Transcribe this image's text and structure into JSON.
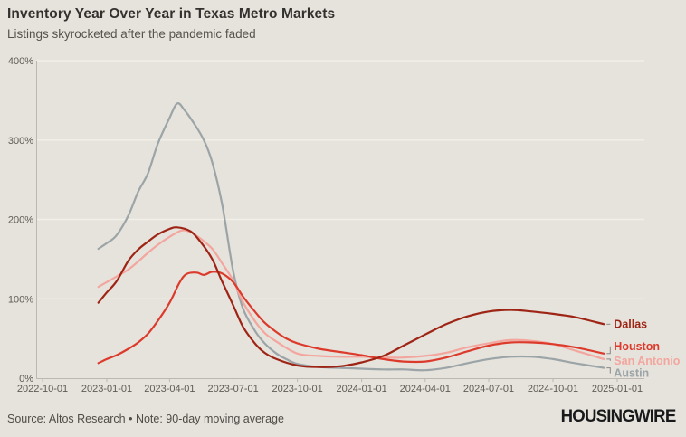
{
  "header": {
    "title": "Inventory Year Over Year in Texas Metro Markets",
    "subtitle": "Listings skyrocketed after the pandemic faded"
  },
  "footer": {
    "source_note": "Source: Altos Research • Note: 90-day moving average",
    "brand": "HOUSINGWIRE"
  },
  "colors": {
    "background": "#e6e2dc",
    "gridline": "#f1efe9",
    "axis": "#bcb8b1",
    "tick_text": "#5f5b55",
    "leader": "#8a8681",
    "dallas": "#9e2515",
    "houston": "#dc3b2c",
    "san_antonio": "#f3a69e",
    "austin": "#9ba4a6"
  },
  "chart_data": {
    "type": "line",
    "title": "Inventory Year Over Year in Texas Metro Markets",
    "subtitle": "Listings skyrocketed after the pandemic faded",
    "xlabel": "",
    "ylabel": "",
    "ylim": [
      0,
      400
    ],
    "grid": "horizontal",
    "legend_position": "end-of-line-labels",
    "x_range": [
      "2022-10-01",
      "2025-01-01"
    ],
    "x_ticks": [
      "2022-10-01",
      "2023-01-01",
      "2023-04-01",
      "2023-07-01",
      "2023-10-01",
      "2024-01-01",
      "2024-04-01",
      "2024-07-01",
      "2024-10-01",
      "2025-01-01"
    ],
    "y_ticks": [
      {
        "value": 0,
        "label": "0%"
      },
      {
        "value": 100,
        "label": "100%"
      },
      {
        "value": 200,
        "label": "200%"
      },
      {
        "value": 300,
        "label": "300%"
      },
      {
        "value": 400,
        "label": "400%"
      }
    ],
    "series": [
      {
        "name": "Austin",
        "color": "#9ba4a6",
        "label_dy": 6,
        "points": [
          [
            "2022-12-20",
            163
          ],
          [
            "2023-01-01",
            170
          ],
          [
            "2023-01-15",
            180
          ],
          [
            "2023-02-01",
            205
          ],
          [
            "2023-02-15",
            235
          ],
          [
            "2023-03-01",
            258
          ],
          [
            "2023-03-15",
            295
          ],
          [
            "2023-04-01",
            328
          ],
          [
            "2023-04-12",
            346
          ],
          [
            "2023-04-22",
            338
          ],
          [
            "2023-05-05",
            322
          ],
          [
            "2023-05-20",
            300
          ],
          [
            "2023-06-01",
            272
          ],
          [
            "2023-06-15",
            220
          ],
          [
            "2023-07-01",
            135
          ],
          [
            "2023-07-15",
            88
          ],
          [
            "2023-08-01",
            60
          ],
          [
            "2023-08-15",
            44
          ],
          [
            "2023-09-01",
            31
          ],
          [
            "2023-09-15",
            24
          ],
          [
            "2023-10-01",
            18
          ],
          [
            "2023-11-01",
            14
          ],
          [
            "2023-12-01",
            13
          ],
          [
            "2024-01-01",
            12
          ],
          [
            "2024-02-01",
            11
          ],
          [
            "2024-03-01",
            11
          ],
          [
            "2024-04-01",
            10
          ],
          [
            "2024-05-01",
            13
          ],
          [
            "2024-06-01",
            19
          ],
          [
            "2024-07-01",
            24
          ],
          [
            "2024-08-01",
            27
          ],
          [
            "2024-09-01",
            27
          ],
          [
            "2024-10-01",
            24
          ],
          [
            "2024-11-01",
            19
          ],
          [
            "2024-12-13",
            13
          ]
        ]
      },
      {
        "name": "San Antonio",
        "color": "#f3a69e",
        "label_dy": 2,
        "points": [
          [
            "2022-12-20",
            115
          ],
          [
            "2023-01-01",
            121
          ],
          [
            "2023-01-15",
            128
          ],
          [
            "2023-02-01",
            137
          ],
          [
            "2023-02-15",
            147
          ],
          [
            "2023-03-01",
            158
          ],
          [
            "2023-03-15",
            168
          ],
          [
            "2023-04-01",
            178
          ],
          [
            "2023-04-18",
            186
          ],
          [
            "2023-05-01",
            184
          ],
          [
            "2023-05-15",
            176
          ],
          [
            "2023-06-01",
            163
          ],
          [
            "2023-06-15",
            145
          ],
          [
            "2023-07-01",
            123
          ],
          [
            "2023-07-15",
            96
          ],
          [
            "2023-08-01",
            72
          ],
          [
            "2023-08-15",
            57
          ],
          [
            "2023-09-01",
            46
          ],
          [
            "2023-10-01",
            31
          ],
          [
            "2023-11-01",
            28
          ],
          [
            "2023-12-01",
            27
          ],
          [
            "2024-01-01",
            27
          ],
          [
            "2024-02-01",
            26
          ],
          [
            "2024-03-01",
            26
          ],
          [
            "2024-04-01",
            28
          ],
          [
            "2024-05-01",
            32
          ],
          [
            "2024-06-01",
            39
          ],
          [
            "2024-07-01",
            44
          ],
          [
            "2024-08-01",
            48
          ],
          [
            "2024-09-01",
            47
          ],
          [
            "2024-10-01",
            43
          ],
          [
            "2024-11-01",
            35
          ],
          [
            "2024-12-13",
            24
          ]
        ]
      },
      {
        "name": "Houston",
        "color": "#dc3b2c",
        "label_dy": -8,
        "points": [
          [
            "2022-12-20",
            19
          ],
          [
            "2023-01-01",
            24
          ],
          [
            "2023-01-15",
            29
          ],
          [
            "2023-02-01",
            37
          ],
          [
            "2023-02-15",
            45
          ],
          [
            "2023-03-01",
            56
          ],
          [
            "2023-03-15",
            72
          ],
          [
            "2023-04-01",
            95
          ],
          [
            "2023-04-15",
            120
          ],
          [
            "2023-04-25",
            131
          ],
          [
            "2023-05-10",
            133
          ],
          [
            "2023-05-20",
            130
          ],
          [
            "2023-06-01",
            134
          ],
          [
            "2023-06-15",
            132
          ],
          [
            "2023-07-01",
            121
          ],
          [
            "2023-07-15",
            103
          ],
          [
            "2023-08-01",
            84
          ],
          [
            "2023-08-15",
            70
          ],
          [
            "2023-09-01",
            58
          ],
          [
            "2023-09-15",
            50
          ],
          [
            "2023-10-01",
            44
          ],
          [
            "2023-11-01",
            37
          ],
          [
            "2023-12-01",
            33
          ],
          [
            "2024-01-01",
            29
          ],
          [
            "2024-02-01",
            24
          ],
          [
            "2024-03-01",
            21
          ],
          [
            "2024-04-01",
            21
          ],
          [
            "2024-05-01",
            26
          ],
          [
            "2024-06-01",
            34
          ],
          [
            "2024-07-01",
            41
          ],
          [
            "2024-08-01",
            45
          ],
          [
            "2024-09-01",
            45
          ],
          [
            "2024-10-01",
            43
          ],
          [
            "2024-11-01",
            39
          ],
          [
            "2024-12-13",
            31
          ]
        ]
      },
      {
        "name": "Dallas",
        "color": "#9e2515",
        "label_dy": 0,
        "points": [
          [
            "2022-12-20",
            95
          ],
          [
            "2023-01-01",
            108
          ],
          [
            "2023-01-15",
            122
          ],
          [
            "2023-02-01",
            148
          ],
          [
            "2023-02-15",
            162
          ],
          [
            "2023-03-01",
            172
          ],
          [
            "2023-03-15",
            181
          ],
          [
            "2023-04-01",
            188
          ],
          [
            "2023-04-12",
            190
          ],
          [
            "2023-05-01",
            185
          ],
          [
            "2023-05-15",
            172
          ],
          [
            "2023-06-01",
            150
          ],
          [
            "2023-06-15",
            122
          ],
          [
            "2023-07-01",
            92
          ],
          [
            "2023-07-15",
            65
          ],
          [
            "2023-08-01",
            44
          ],
          [
            "2023-08-15",
            32
          ],
          [
            "2023-09-01",
            24
          ],
          [
            "2023-10-01",
            16
          ],
          [
            "2023-11-01",
            14
          ],
          [
            "2023-12-01",
            15
          ],
          [
            "2024-01-01",
            20
          ],
          [
            "2024-02-01",
            28
          ],
          [
            "2024-03-01",
            41
          ],
          [
            "2024-04-01",
            55
          ],
          [
            "2024-05-01",
            68
          ],
          [
            "2024-06-01",
            78
          ],
          [
            "2024-07-01",
            84
          ],
          [
            "2024-08-01",
            86
          ],
          [
            "2024-09-01",
            84
          ],
          [
            "2024-10-01",
            81
          ],
          [
            "2024-11-01",
            77
          ],
          [
            "2024-12-13",
            68
          ]
        ]
      }
    ]
  }
}
